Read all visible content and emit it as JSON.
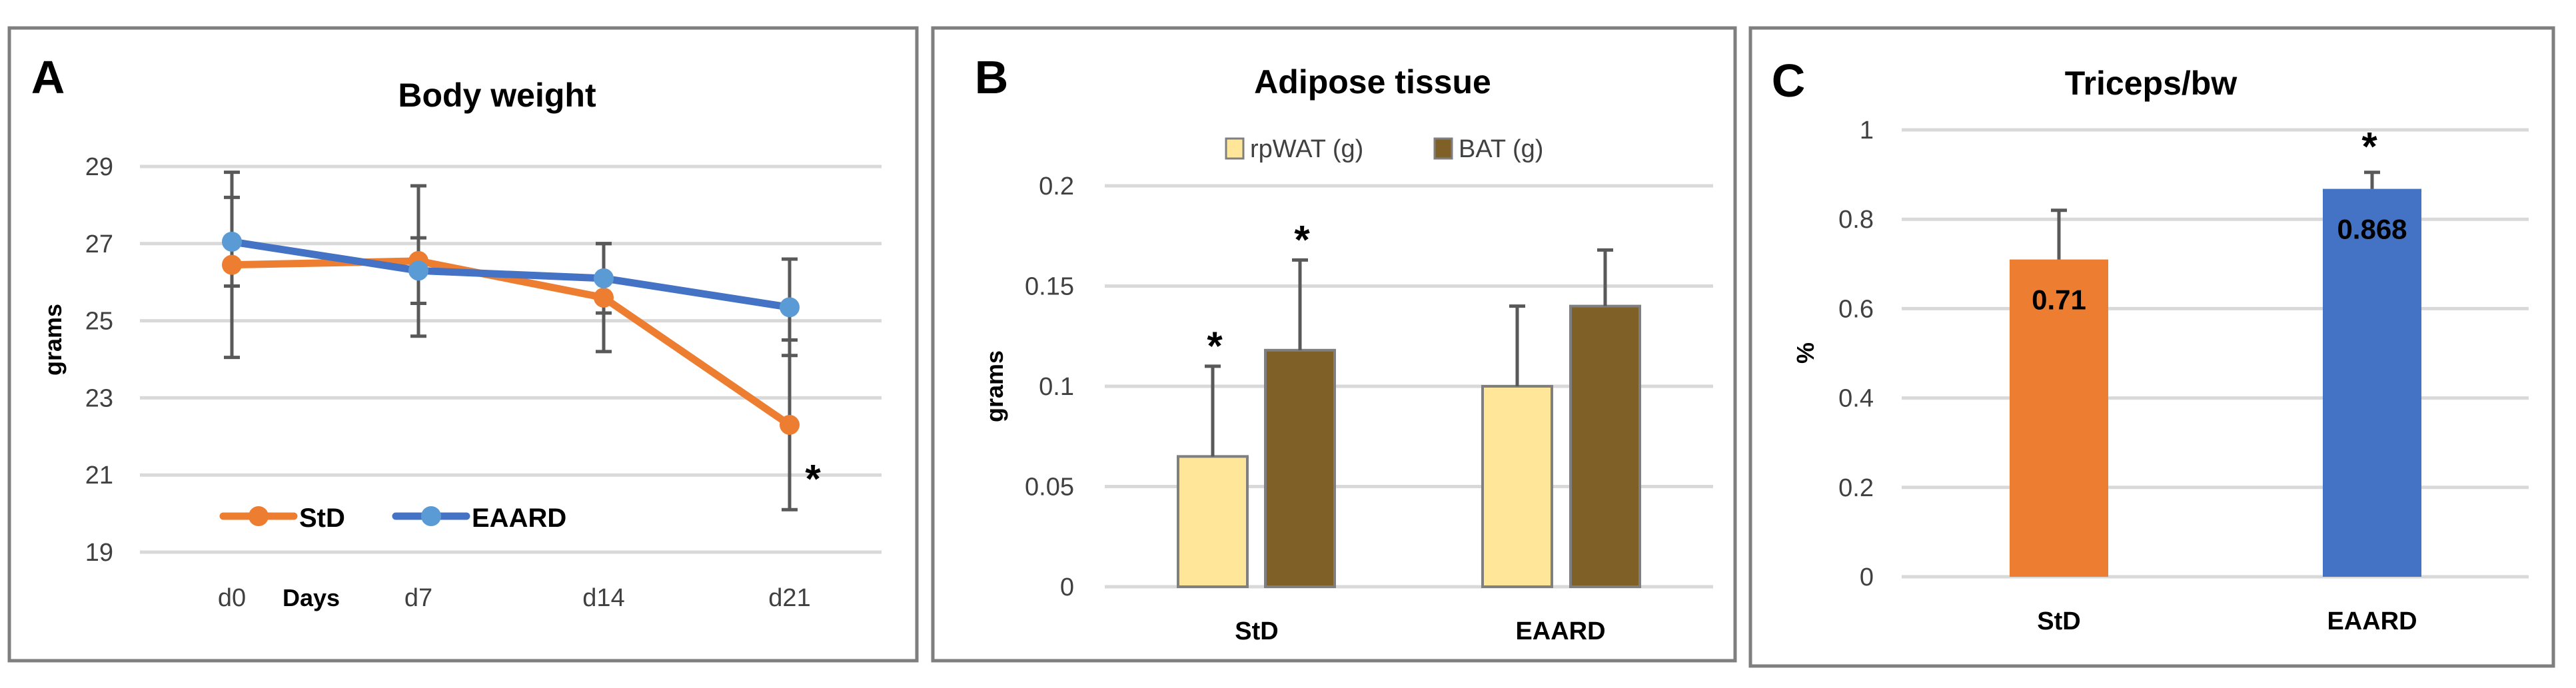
{
  "chart_data": [
    {
      "panel_label": "A",
      "type": "line",
      "title": "Body weight",
      "xlabel": "Days",
      "ylabel": "grams",
      "categories": [
        "d0",
        "d7",
        "d14",
        "d21"
      ],
      "ylim": [
        19,
        29
      ],
      "yticks": [
        "19",
        "21",
        "23",
        "25",
        "27",
        "29"
      ],
      "grid": true,
      "legend": "bottom-left",
      "series": [
        {
          "name": "StD",
          "color": "#ED7D31",
          "marker_color": "#ED7D31",
          "values": [
            26.45,
            26.55,
            25.6,
            22.3
          ],
          "error": [
            2.4,
            1.95,
            1.4,
            2.2
          ]
        },
        {
          "name": "EAARD",
          "color": "#4472C4",
          "marker_color": "#5B9BD5",
          "values": [
            27.05,
            26.3,
            26.1,
            25.35
          ],
          "error": [
            1.15,
            0.85,
            0.9,
            1.25
          ]
        }
      ],
      "annotations": [
        {
          "text": "*",
          "category": "d21",
          "series": "StD"
        }
      ]
    },
    {
      "panel_label": "B",
      "type": "bar",
      "title": "Adipose tissue",
      "ylabel": "grams",
      "categories": [
        "StD",
        "EAARD"
      ],
      "ylim": [
        0,
        0.2
      ],
      "yticks": [
        "0",
        "0.05",
        "0.1",
        "0.15",
        "0.2"
      ],
      "grid": true,
      "legend": "top",
      "series": [
        {
          "name": "rpWAT (g)",
          "color": "#FFE699",
          "values": [
            0.065,
            0.1
          ],
          "error": [
            0.045,
            0.04
          ],
          "significant": [
            true,
            false
          ]
        },
        {
          "name": "BAT (g)",
          "color": "#7F6027",
          "values": [
            0.118,
            0.14
          ],
          "error": [
            0.045,
            0.028
          ],
          "significant": [
            true,
            false
          ]
        }
      ],
      "annotation_text": "*"
    },
    {
      "panel_label": "C",
      "type": "bar",
      "title": "Triceps/bw",
      "ylabel": "%",
      "categories": [
        "StD",
        "EAARD"
      ],
      "ylim": [
        0,
        1
      ],
      "yticks": [
        "0",
        "0.2",
        "0.4",
        "0.6",
        "0.8",
        "1"
      ],
      "grid": true,
      "series": [
        {
          "colors": [
            "#ED7D31",
            "#4472C4"
          ],
          "values": [
            0.71,
            0.868
          ],
          "data_labels": [
            "0.71",
            "0.868"
          ],
          "error": [
            0.11,
            0.037
          ],
          "significant": [
            false,
            true
          ]
        }
      ],
      "annotation_text": "*"
    }
  ]
}
